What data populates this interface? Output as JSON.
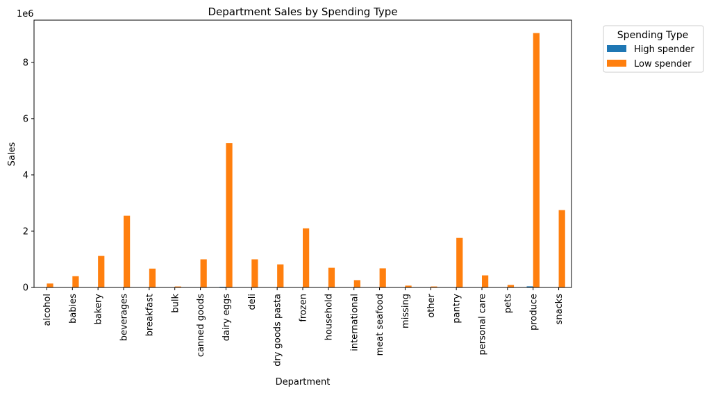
{
  "chart_data": {
    "type": "bar",
    "title": "Department Sales by Spending Type",
    "xlabel": "Department",
    "ylabel": "Sales",
    "y_scale_label": "1e6",
    "ylim": [
      0,
      9500000
    ],
    "y_ticks": [
      0,
      2000000,
      4000000,
      6000000,
      8000000
    ],
    "y_tick_labels": [
      "0",
      "2",
      "4",
      "6",
      "8"
    ],
    "categories": [
      "alcohol",
      "babies",
      "bakery",
      "beverages",
      "breakfast",
      "bulk",
      "canned goods",
      "dairy eggs",
      "deli",
      "dry goods pasta",
      "frozen",
      "household",
      "international",
      "meat seafood",
      "missing",
      "other",
      "pantry",
      "personal care",
      "pets",
      "produce",
      "snacks"
    ],
    "series": [
      {
        "name": "High spender",
        "color": "#1f77b4",
        "values": [
          1000,
          2000,
          4000,
          9000,
          3000,
          200,
          4000,
          25000,
          4000,
          3000,
          8000,
          3000,
          1000,
          3000,
          200,
          100,
          7000,
          2000,
          400,
          40000,
          10000
        ]
      },
      {
        "name": "Low spender",
        "color": "#ff7f0e",
        "values": [
          140000,
          400000,
          1120000,
          2550000,
          670000,
          35000,
          1000000,
          5130000,
          1000000,
          820000,
          2100000,
          700000,
          260000,
          680000,
          65000,
          35000,
          1760000,
          430000,
          90000,
          9040000,
          2750000
        ]
      }
    ],
    "legend": {
      "title": "Spending Type",
      "placement": "outside-right-top"
    },
    "grid": false
  }
}
